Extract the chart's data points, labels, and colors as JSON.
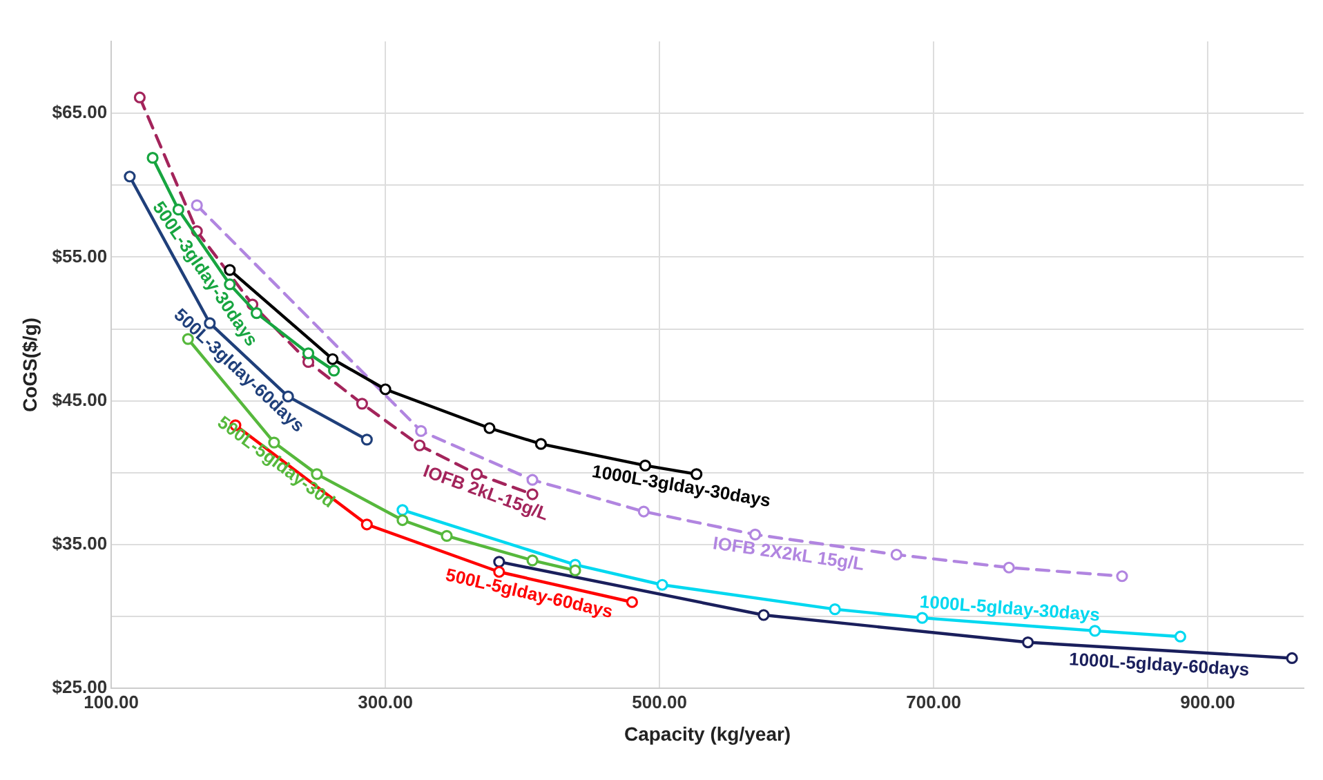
{
  "chart_data": {
    "type": "line",
    "xlabel": "Capacity (kg/year)",
    "ylabel": "CoGS($/g)",
    "xlim": [
      100,
      970
    ],
    "xticks": [
      {
        "value": 100,
        "label": "100.00"
      },
      {
        "value": 300,
        "label": "300.00"
      },
      {
        "value": 500,
        "label": "500.00"
      },
      {
        "value": 700,
        "label": "700.00"
      },
      {
        "value": 900,
        "label": "900.00"
      }
    ],
    "ylim": [
      25,
      70
    ],
    "yticks": [
      {
        "value": 25,
        "label": "$25.00"
      },
      {
        "value": 30,
        "label": null
      },
      {
        "value": 35,
        "label": "$35.00"
      },
      {
        "value": 40,
        "label": null
      },
      {
        "value": 45,
        "label": "$45.00"
      },
      {
        "value": 50,
        "label": null
      },
      {
        "value": 55,
        "label": "$55.00"
      },
      {
        "value": 60,
        "label": null
      },
      {
        "value": 65,
        "label": "$65.00"
      }
    ],
    "grid": true,
    "legend": false,
    "marker": "circle",
    "series": [
      {
        "name": "1000L-3glday-30days",
        "color": "#000000",
        "x": [
          186.5,
          261.5,
          300,
          376,
          413.5,
          489.6,
          527
        ],
        "values": [
          54.1,
          47.9,
          45.8,
          43.1,
          42.0,
          40.5,
          39.9
        ]
      },
      {
        "name": "500L-3glday-30days",
        "color": "#17a540",
        "x": [
          130.2,
          149,
          186.5,
          206,
          243.8,
          262.5
        ],
        "values": [
          61.9,
          58.3,
          53.1,
          51.1,
          48.3,
          47.1
        ]
      },
      {
        "name": "IOFB 2kL-15g/L",
        "color": "#a3245b",
        "line_style": "dashed",
        "x": [
          120.8,
          162.5,
          203,
          243.8,
          283,
          325,
          366.7,
          407.3
        ],
        "values": [
          66.1,
          56.8,
          51.7,
          47.7,
          44.8,
          41.9,
          39.9,
          38.5
        ]
      },
      {
        "name": "IOFB 2X2kL 15g/L",
        "color": "#b185e0",
        "line_style": "dashed",
        "x": [
          162.5,
          326,
          407.3,
          488.5,
          569.8,
          672.9,
          755,
          837.5
        ],
        "values": [
          58.6,
          42.9,
          39.5,
          37.3,
          35.7,
          34.3,
          33.4,
          32.8
        ]
      },
      {
        "name": "500L-3glday-60days",
        "color": "#1f3f7a",
        "x": [
          113.5,
          171.9,
          229,
          286.5
        ],
        "values": [
          60.6,
          50.4,
          45.3,
          42.3
        ]
      },
      {
        "name": "500L-5glday-30d",
        "color": "#56b83c",
        "x": [
          156,
          218.8,
          250,
          312.5,
          344.8,
          407.3,
          438.5
        ],
        "values": [
          49.3,
          42.1,
          39.9,
          36.7,
          35.6,
          33.9,
          33.2
        ]
      },
      {
        "name": "500L-5glday-60days",
        "color": "#ff0000",
        "x": [
          190.6,
          286.5,
          383,
          480
        ],
        "values": [
          43.3,
          36.4,
          33.1,
          31.0
        ]
      },
      {
        "name": "1000L-5glday-30days",
        "color": "#00d8f0",
        "x": [
          312.5,
          438.5,
          502,
          628,
          691.7,
          817.7,
          880
        ],
        "values": [
          37.4,
          33.6,
          32.2,
          30.5,
          29.9,
          29.0,
          28.6
        ]
      },
      {
        "name": "1000L-5glday-60days",
        "color": "#1a1f5c",
        "x": [
          383,
          576,
          768.8,
          961.5
        ],
        "values": [
          33.8,
          30.1,
          28.2,
          27.1
        ]
      }
    ]
  }
}
